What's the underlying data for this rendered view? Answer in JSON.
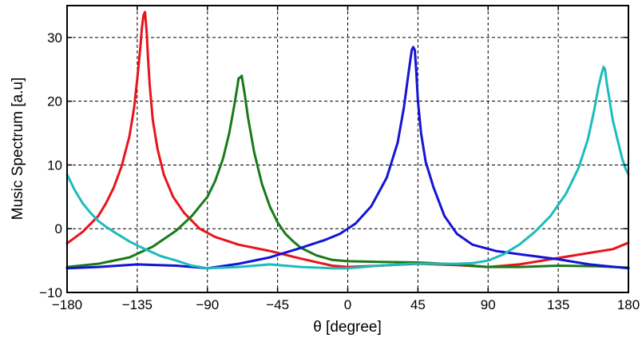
{
  "chart_data": {
    "type": "line",
    "title": "",
    "xlabel": "θ [degree]",
    "ylabel": "Music Spectrum [a.u]",
    "xlim": [
      -180,
      180
    ],
    "ylim": [
      -10,
      35
    ],
    "xticks": [
      -180,
      -135,
      -90,
      -45,
      0,
      45,
      90,
      135,
      180
    ],
    "yticks": [
      -10,
      0,
      10,
      20,
      30
    ],
    "xtick_labels": [
      "−180",
      "−135",
      "−90",
      "−45",
      "0",
      "45",
      "90",
      "135",
      "180"
    ],
    "ytick_labels": [
      "−10",
      "0",
      "10",
      "20",
      "30"
    ],
    "grid": true,
    "series": [
      {
        "color": "#e8141c",
        "x": [
          -180,
          -170,
          -160,
          -155,
          -150,
          -145,
          -140,
          -137,
          -135,
          -133,
          -132,
          -131,
          -130,
          -129,
          -128,
          -127,
          -125,
          -122,
          -118,
          -112,
          -105,
          -95,
          -85,
          -70,
          -50,
          -30,
          -10,
          0,
          20,
          45,
          70,
          90,
          110,
          135,
          155,
          170,
          180
        ],
        "y": [
          -2.3,
          -0.5,
          2.0,
          4.0,
          6.5,
          9.8,
          14.5,
          19.0,
          23.5,
          28.5,
          31.5,
          33.5,
          34.0,
          31.0,
          26.5,
          22.5,
          17.0,
          12.5,
          8.5,
          5.0,
          2.5,
          0.0,
          -1.3,
          -2.5,
          -3.5,
          -4.7,
          -5.8,
          -6.0,
          -5.8,
          -5.5,
          -5.7,
          -6.0,
          -5.6,
          -4.6,
          -3.8,
          -3.2,
          -2.2
        ]
      },
      {
        "color": "#1a7a1a",
        "x": [
          -180,
          -160,
          -140,
          -125,
          -110,
          -100,
          -90,
          -85,
          -80,
          -76,
          -73,
          -71,
          -70,
          -69,
          -68,
          -66,
          -64,
          -60,
          -55,
          -50,
          -45,
          -40,
          -35,
          -30,
          -20,
          -10,
          0,
          20,
          45,
          70,
          90,
          110,
          135,
          160,
          180
        ],
        "y": [
          -6.0,
          -5.5,
          -4.5,
          -2.8,
          -0.3,
          2.0,
          5.0,
          7.5,
          11.0,
          15.0,
          19.0,
          22.0,
          23.6,
          23.7,
          24.0,
          21.0,
          17.5,
          12.0,
          7.0,
          3.5,
          1.0,
          -0.8,
          -2.0,
          -3.0,
          -4.2,
          -4.9,
          -5.1,
          -5.2,
          -5.3,
          -5.6,
          -6.0,
          -6.0,
          -5.8,
          -5.9,
          -6.1
        ]
      },
      {
        "color": "#1414d4",
        "x": [
          -180,
          -160,
          -135,
          -110,
          -90,
          -70,
          -50,
          -30,
          -15,
          -5,
          5,
          15,
          25,
          32,
          36,
          39,
          41,
          42,
          43,
          44,
          45,
          47,
          50,
          55,
          62,
          70,
          80,
          95,
          110,
          135,
          155,
          180
        ],
        "y": [
          -6.2,
          -6.0,
          -5.6,
          -5.8,
          -6.2,
          -5.5,
          -4.5,
          -3.0,
          -1.8,
          -0.8,
          0.8,
          3.5,
          8.0,
          13.5,
          19.0,
          24.5,
          28.0,
          28.5,
          28.0,
          24.5,
          20.0,
          15.0,
          10.5,
          6.5,
          2.0,
          -0.8,
          -2.5,
          -3.5,
          -4.0,
          -4.8,
          -5.6,
          -6.2
        ]
      },
      {
        "color": "#1cbcbc",
        "x": [
          -180,
          -175,
          -170,
          -165,
          -160,
          -155,
          -150,
          -140,
          -130,
          -120,
          -110,
          -100,
          -90,
          -70,
          -50,
          -30,
          -10,
          0,
          20,
          40,
          60,
          70,
          80,
          90,
          100,
          110,
          120,
          130,
          140,
          148,
          154,
          158,
          161,
          163,
          164,
          165,
          166,
          168,
          170,
          173,
          176,
          178,
          180
        ],
        "y": [
          8.5,
          6.0,
          4.0,
          2.5,
          1.2,
          0.3,
          -0.5,
          -2.0,
          -3.2,
          -4.3,
          -5.0,
          -5.8,
          -6.2,
          -6.0,
          -5.6,
          -6.0,
          -6.2,
          -6.2,
          -5.8,
          -5.5,
          -5.5,
          -5.5,
          -5.4,
          -5.0,
          -4.0,
          -2.5,
          -0.5,
          2.0,
          5.5,
          9.5,
          14.0,
          18.5,
          22.5,
          24.5,
          25.4,
          25.0,
          23.0,
          20.0,
          17.0,
          14.0,
          11.0,
          9.5,
          8.5
        ]
      }
    ]
  }
}
